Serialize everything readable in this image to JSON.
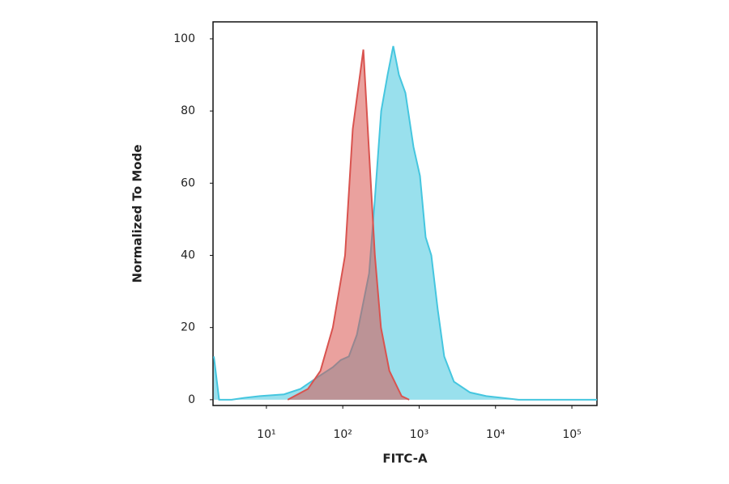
{
  "chart_data": {
    "type": "area",
    "x_label": "FITC-A",
    "y_label": "Normalized To Mode",
    "x_scale": "log",
    "xlim": [
      2,
      213000
    ],
    "ylim": [
      -1.6,
      104.7
    ],
    "xticks": [
      {
        "value": 10,
        "label": "10¹"
      },
      {
        "value": 100,
        "label": "10²"
      },
      {
        "value": 1000,
        "label": "10³"
      },
      {
        "value": 10000,
        "label": "10⁴"
      },
      {
        "value": 100000,
        "label": "10⁵"
      }
    ],
    "yticks": [
      0,
      20,
      40,
      60,
      80,
      100
    ],
    "grid": false,
    "series": [
      {
        "color": "#45c6df",
        "x": [
          2.05,
          2.4,
          3.5,
          5.1,
          8.2,
          17,
          28,
          45,
          74,
          94,
          120,
          153,
          221,
          262,
          318,
          386,
          458,
          543,
          661,
          843,
          1025,
          1216,
          1443,
          1751,
          2128,
          2851,
          4641,
          7551,
          20050,
          213000
        ],
        "values": [
          12,
          0,
          0,
          0.5,
          1,
          1.5,
          3,
          6,
          9,
          11,
          12,
          18,
          35,
          55,
          80,
          90,
          98,
          90,
          85,
          70,
          62,
          45,
          40,
          25,
          12,
          5,
          2,
          1,
          0,
          0
        ]
      },
      {
        "color": "#d9534f",
        "x": [
          19,
          35,
          51,
          74,
          107,
          135,
          186,
          219,
          263,
          316,
          407,
          589,
          741
        ],
        "values": [
          0,
          3,
          8,
          20,
          40,
          75,
          97,
          70,
          40,
          20,
          8,
          1,
          0
        ]
      }
    ]
  }
}
